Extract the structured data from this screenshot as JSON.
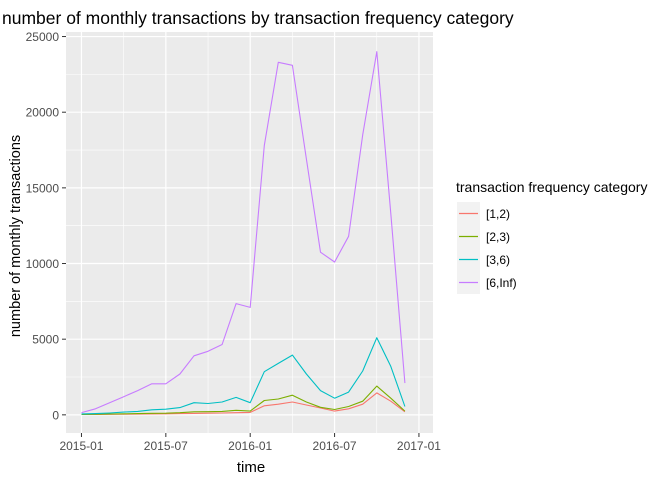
{
  "chart_data": {
    "type": "line",
    "title": "number of monthly transactions by transaction frequency category",
    "xlabel": "time",
    "ylabel": "number of monthly transactions",
    "x_ticks": [
      {
        "label": "2015-01",
        "month": 0
      },
      {
        "label": "2015-07",
        "month": 6
      },
      {
        "label": "2016-01",
        "month": 12
      },
      {
        "label": "2016-07",
        "month": 18
      },
      {
        "label": "2017-01",
        "month": 24
      }
    ],
    "y_ticks": [
      0,
      5000,
      10000,
      15000,
      20000,
      25000
    ],
    "xlim": [
      -1.1,
      25
    ],
    "ylim": [
      -1200,
      25300
    ],
    "x": [
      "2015-01",
      "2015-02",
      "2015-03",
      "2015-04",
      "2015-05",
      "2015-06",
      "2015-07",
      "2015-08",
      "2015-09",
      "2015-10",
      "2015-11",
      "2015-12",
      "2016-01",
      "2016-02",
      "2016-03",
      "2016-04",
      "2016-05",
      "2016-06",
      "2016-07",
      "2016-08",
      "2016-09",
      "2016-10",
      "2016-11",
      "2016-12"
    ],
    "legend": {
      "title": "transaction frequency category",
      "position": "right"
    },
    "series": [
      {
        "name": "[1,2)",
        "color": "#F8766D",
        "values": [
          20,
          25,
          35,
          45,
          50,
          60,
          70,
          80,
          95,
          110,
          120,
          140,
          160,
          600,
          700,
          850,
          650,
          450,
          250,
          400,
          700,
          1450,
          900,
          200
        ]
      },
      {
        "name": "[2,3)",
        "color": "#7CAE00",
        "values": [
          30,
          40,
          55,
          70,
          80,
          100,
          110,
          140,
          200,
          210,
          230,
          300,
          250,
          950,
          1050,
          1300,
          850,
          500,
          350,
          550,
          900,
          1900,
          1100,
          250
        ]
      },
      {
        "name": "[3,6)",
        "color": "#00BFC4",
        "values": [
          60,
          80,
          120,
          180,
          230,
          330,
          370,
          480,
          800,
          750,
          850,
          1150,
          800,
          2850,
          3400,
          3950,
          2700,
          1600,
          1100,
          1500,
          2900,
          5100,
          3200,
          550
        ]
      },
      {
        "name": "[6,Inf)",
        "color": "#C77CFF",
        "values": [
          150,
          400,
          800,
          1200,
          1600,
          2050,
          2050,
          2700,
          3900,
          4200,
          4650,
          7350,
          7100,
          17800,
          23300,
          23100,
          16900,
          10750,
          10100,
          11800,
          18500,
          24000,
          13300,
          2100
        ]
      }
    ]
  }
}
